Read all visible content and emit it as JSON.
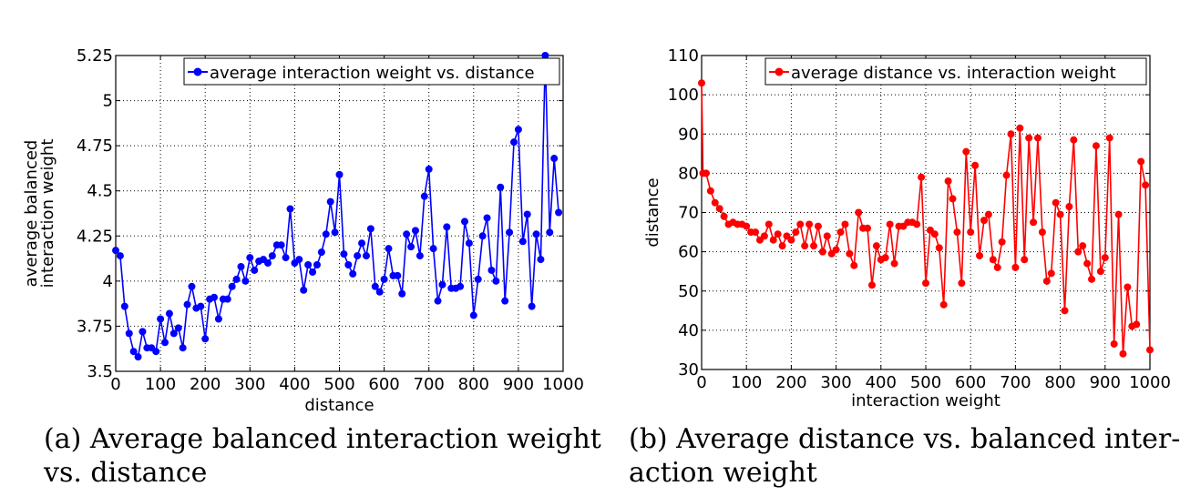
{
  "chart_data": [
    {
      "type": "line",
      "caption": "(a) Average balanced interaction weight vs. distance",
      "caption_lines": [
        "(a) Average balanced interaction weight",
        "vs. distance"
      ],
      "xlabel": "distance",
      "ylabel_lines": [
        "average balanced",
        "interaction weight"
      ],
      "xlim": [
        0,
        1000
      ],
      "ylim": [
        3.5,
        5.25
      ],
      "xticks": [
        0,
        100,
        200,
        300,
        400,
        500,
        600,
        700,
        800,
        900,
        1000
      ],
      "xtick_labels": [
        "0",
        "100",
        "200",
        "300",
        "400",
        "500",
        "600",
        "700",
        "800",
        "900",
        "1000"
      ],
      "yticks": [
        3.5,
        3.75,
        4,
        4.25,
        4.5,
        4.75,
        5,
        5.25
      ],
      "ytick_labels": [
        "3.5",
        "3.75",
        "4",
        "4.25",
        "4.5",
        "4.75",
        "5",
        "5.25"
      ],
      "grid": true,
      "legend": "top-right",
      "series": [
        {
          "name": "average interaction weight vs. distance",
          "color": "#0000ff",
          "x": [
            0,
            10,
            20,
            30,
            40,
            50,
            60,
            70,
            80,
            90,
            100,
            110,
            120,
            130,
            140,
            150,
            160,
            170,
            180,
            190,
            200,
            210,
            220,
            230,
            240,
            250,
            260,
            270,
            280,
            290,
            300,
            310,
            320,
            330,
            340,
            350,
            360,
            370,
            380,
            390,
            400,
            410,
            420,
            430,
            440,
            450,
            460,
            470,
            480,
            490,
            500,
            510,
            520,
            530,
            540,
            550,
            560,
            570,
            580,
            590,
            600,
            610,
            620,
            630,
            640,
            650,
            660,
            670,
            680,
            690,
            700,
            710,
            720,
            730,
            740,
            750,
            760,
            770,
            780,
            790,
            800,
            810,
            820,
            830,
            840,
            850,
            860,
            870,
            880,
            890,
            900,
            910,
            920,
            930,
            940,
            950,
            960,
            970,
            980,
            990
          ],
          "y": [
            4.17,
            4.14,
            3.86,
            3.71,
            3.61,
            3.58,
            3.72,
            3.63,
            3.63,
            3.61,
            3.79,
            3.66,
            3.82,
            3.71,
            3.74,
            3.63,
            3.87,
            3.97,
            3.85,
            3.86,
            3.68,
            3.9,
            3.91,
            3.79,
            3.9,
            3.9,
            3.97,
            4.01,
            4.08,
            4.0,
            4.13,
            4.06,
            4.11,
            4.12,
            4.1,
            4.14,
            4.2,
            4.2,
            4.13,
            4.4,
            4.1,
            4.12,
            3.95,
            4.09,
            4.05,
            4.09,
            4.16,
            4.26,
            4.44,
            4.27,
            4.59,
            4.15,
            4.09,
            4.04,
            4.14,
            4.21,
            4.14,
            4.29,
            3.97,
            3.94,
            4.01,
            4.18,
            4.03,
            4.03,
            3.93,
            4.26,
            4.19,
            4.28,
            4.14,
            4.47,
            4.62,
            4.18,
            3.89,
            3.98,
            4.3,
            3.96,
            3.96,
            3.97,
            4.33,
            4.21,
            3.81,
            4.01,
            4.25,
            4.35,
            4.06,
            4.0,
            4.52,
            3.89,
            4.27,
            4.77,
            4.84,
            4.22,
            4.37,
            3.86,
            4.26,
            4.12,
            5.25,
            4.27,
            4.68,
            4.38
          ]
        }
      ]
    },
    {
      "type": "line",
      "caption": "(b) Average distance vs. balanced interaction weight",
      "caption_lines": [
        "(b) Average distance vs. balanced inter-",
        "action weight"
      ],
      "xlabel": "interaction weight",
      "ylabel_lines": [
        "distance"
      ],
      "xlim": [
        0,
        1000
      ],
      "ylim": [
        30,
        110
      ],
      "xticks": [
        0,
        100,
        200,
        300,
        400,
        500,
        600,
        700,
        800,
        900,
        1000
      ],
      "xtick_labels": [
        "0",
        "100",
        "200",
        "300",
        "400",
        "500",
        "600",
        "700",
        "800",
        "900",
        "1000"
      ],
      "yticks": [
        30,
        40,
        50,
        60,
        70,
        80,
        90,
        100,
        110
      ],
      "ytick_labels": [
        "30",
        "40",
        "50",
        "60",
        "70",
        "80",
        "90",
        "100",
        "110"
      ],
      "grid": true,
      "legend": "top-right",
      "series": [
        {
          "name": "average distance vs. interaction weight",
          "color": "#ff0000",
          "x": [
            0,
            3,
            10,
            20,
            30,
            40,
            50,
            60,
            70,
            80,
            90,
            100,
            110,
            120,
            130,
            140,
            150,
            160,
            170,
            180,
            190,
            200,
            210,
            220,
            230,
            240,
            250,
            260,
            270,
            280,
            290,
            300,
            310,
            320,
            330,
            340,
            350,
            360,
            370,
            380,
            390,
            400,
            410,
            420,
            430,
            440,
            450,
            460,
            470,
            480,
            490,
            500,
            510,
            520,
            530,
            540,
            550,
            560,
            570,
            580,
            590,
            600,
            610,
            620,
            630,
            640,
            650,
            660,
            670,
            680,
            690,
            700,
            710,
            720,
            730,
            740,
            750,
            760,
            770,
            780,
            790,
            800,
            810,
            820,
            830,
            840,
            850,
            860,
            870,
            880,
            890,
            900,
            910,
            920,
            930,
            940,
            950,
            960,
            970,
            980,
            990,
            1000
          ],
          "y": [
            103,
            80,
            80,
            75.5,
            72.5,
            71,
            69,
            67,
            67.5,
            67,
            67,
            66.5,
            65,
            65,
            63,
            64,
            67,
            63,
            64.5,
            61.5,
            64,
            63,
            65,
            67,
            61.5,
            67,
            61.5,
            66.5,
            60,
            64,
            59.5,
            60.5,
            65,
            67,
            59.5,
            56.5,
            70,
            66,
            66,
            51.5,
            61.5,
            58,
            58.5,
            67,
            57,
            66.5,
            66.5,
            67.5,
            67.5,
            67,
            79,
            52,
            65.5,
            64.5,
            61,
            46.5,
            78,
            73.5,
            65,
            52,
            85.5,
            65,
            82,
            59,
            68,
            69.5,
            58,
            56,
            62.5,
            79.5,
            90,
            56,
            91.5,
            58,
            89,
            67.5,
            89,
            65,
            52.5,
            54.5,
            72.5,
            69.5,
            45,
            71.5,
            88.5,
            60,
            61.5,
            57,
            53,
            87,
            55,
            58.5,
            89,
            36.5,
            69.5,
            34,
            51,
            41,
            41.5,
            83,
            77,
            35
          ]
        }
      ]
    }
  ]
}
